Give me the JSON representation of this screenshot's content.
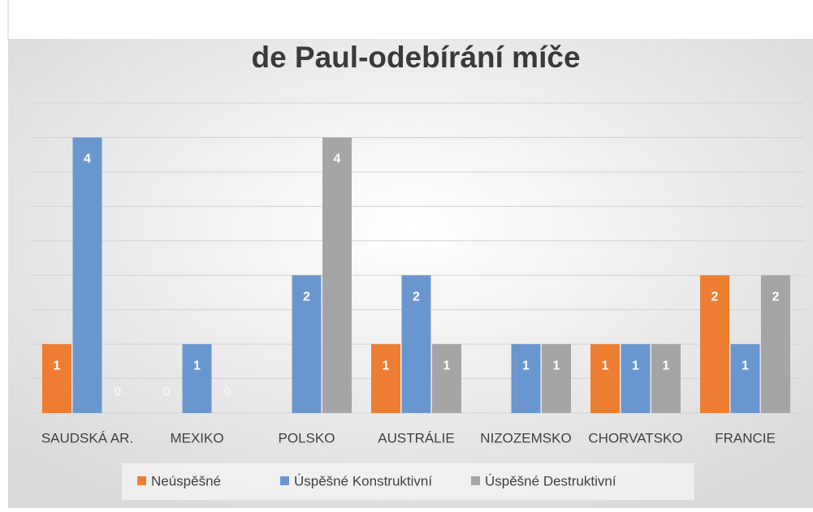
{
  "chart_data": {
    "type": "bar",
    "title": "de Paul-odebírání míče",
    "categories": [
      "SAUDSKÁ AR.",
      "MEXIKO",
      "POLSKO",
      "AUSTRÁLIE",
      "NIZOZEMSKO",
      "CHORVATSKO",
      "FRANCIE"
    ],
    "series": [
      {
        "name": "Neúspěšné",
        "color": "#ed7d31",
        "values": [
          1,
          0,
          null,
          1,
          null,
          1,
          2
        ]
      },
      {
        "name": "Úspěšné Konstruktivní",
        "color": "#6a96d0",
        "values": [
          4,
          1,
          2,
          2,
          1,
          1,
          1
        ]
      },
      {
        "name": "Úspěšné Destruktivní",
        "color": "#a5a5a5",
        "values": [
          0,
          0,
          4,
          1,
          1,
          1,
          2
        ]
      }
    ],
    "ylim": [
      0,
      4.5
    ],
    "yticks": [
      0,
      0.5,
      1,
      1.5,
      2,
      2.5,
      3,
      3.5,
      4,
      4.5
    ],
    "grid": true,
    "legend": "bottom"
  }
}
